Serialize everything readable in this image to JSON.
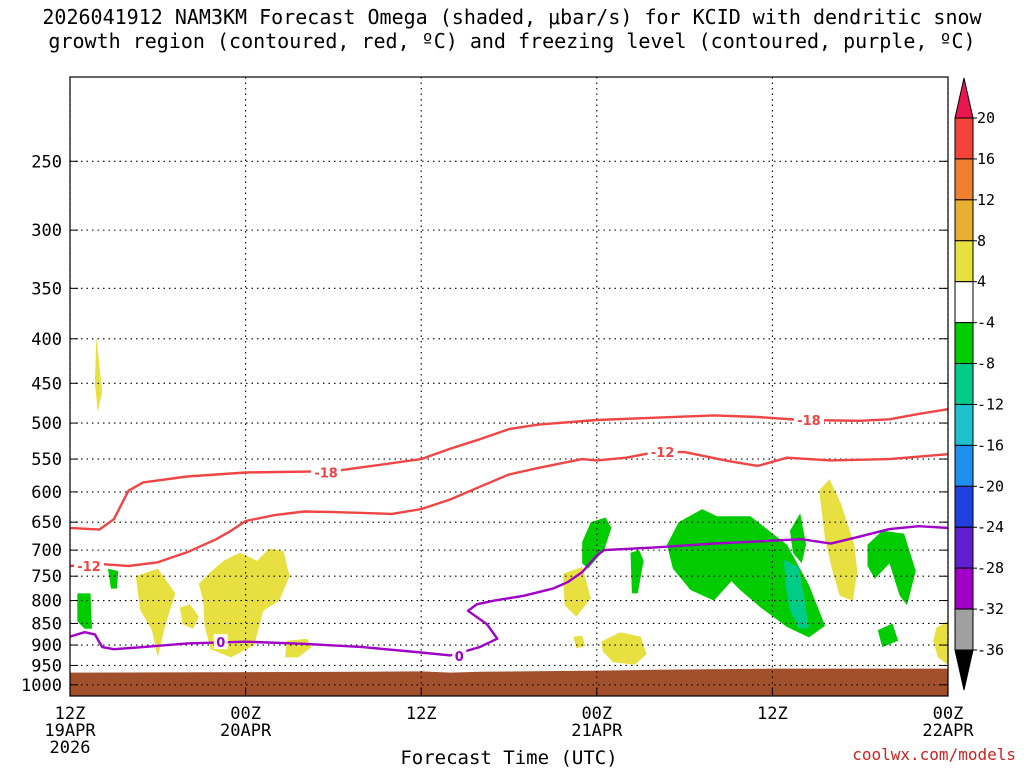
{
  "title_line1": "2026041912 NAM3KM Forecast Omega (shaded, μbar/s) for KCID with dendritic snow",
  "title_line2": "growth region (contoured, red, ºC) and freezing level (contoured, purple, ºC)",
  "credit": "coolwx.com/models",
  "chart_data": {
    "type": "time-height",
    "xlabel": "Forecast Time (UTC)",
    "x_ticks": [
      {
        "hours": 0,
        "line1": "12Z",
        "line2": "19APR",
        "line3": "2026"
      },
      {
        "hours": 12,
        "line1": "00Z",
        "line2": "20APR",
        "line3": ""
      },
      {
        "hours": 24,
        "line1": "12Z",
        "line2": "",
        "line3": ""
      },
      {
        "hours": 36,
        "line1": "00Z",
        "line2": "21APR",
        "line3": ""
      },
      {
        "hours": 48,
        "line1": "12Z",
        "line2": "",
        "line3": ""
      },
      {
        "hours": 60,
        "line1": "00Z",
        "line2": "22APR",
        "line3": ""
      }
    ],
    "y_scale": "log",
    "ylim": [
      200,
      1030
    ],
    "y_ticks": [
      250,
      300,
      350,
      400,
      450,
      500,
      550,
      600,
      650,
      700,
      750,
      800,
      850,
      900,
      950,
      1000
    ],
    "colorbar": {
      "labels": [
        "20",
        "16",
        "12",
        "8",
        "4",
        "-4",
        "-8",
        "-12",
        "-16",
        "-20",
        "-24",
        "-28",
        "-32",
        "-36"
      ],
      "colors": [
        "#e8174f",
        "#f4443a",
        "#f08030",
        "#e8b030",
        "#e8e040",
        "#ffffff",
        "#00cc00",
        "#00cc88",
        "#20c0d0",
        "#2090f0",
        "#2040e0",
        "#6020d0",
        "#a000c8",
        "#a0a0a0",
        "#000000"
      ]
    },
    "contours": [
      {
        "label": "-18",
        "color": "#f04545",
        "label_at": [
          [
            17.5,
            570
          ],
          [
            50.5,
            496
          ]
        ],
        "points": [
          [
            0,
            660
          ],
          [
            2,
            663
          ],
          [
            3,
            645
          ],
          [
            4,
            598
          ],
          [
            5,
            585
          ],
          [
            8,
            576
          ],
          [
            12,
            570
          ],
          [
            18,
            568
          ],
          [
            20,
            562
          ],
          [
            24,
            550
          ],
          [
            26,
            535
          ],
          [
            28,
            522
          ],
          [
            30,
            508
          ],
          [
            32,
            502
          ],
          [
            36,
            496
          ],
          [
            40,
            493
          ],
          [
            44,
            490
          ],
          [
            47,
            492
          ],
          [
            50,
            496
          ],
          [
            54,
            497
          ],
          [
            56,
            495
          ],
          [
            58,
            488
          ],
          [
            60,
            482
          ]
        ]
      },
      {
        "label": "-12",
        "color": "#f04545",
        "label_at": [
          [
            1.3,
            730
          ],
          [
            40.5,
            540
          ]
        ],
        "points": [
          [
            0,
            730
          ],
          [
            2,
            726
          ],
          [
            4,
            730
          ],
          [
            6,
            723
          ],
          [
            8,
            704
          ],
          [
            10,
            680
          ],
          [
            11,
            665
          ],
          [
            12,
            648
          ],
          [
            14,
            638
          ],
          [
            16,
            632
          ],
          [
            18,
            633
          ],
          [
            22,
            636
          ],
          [
            24,
            628
          ],
          [
            26,
            612
          ],
          [
            28,
            592
          ],
          [
            30,
            573
          ],
          [
            32,
            563
          ],
          [
            35,
            550
          ],
          [
            36,
            552
          ],
          [
            38,
            548
          ],
          [
            40,
            540
          ],
          [
            42,
            540
          ],
          [
            45,
            553
          ],
          [
            47,
            560
          ],
          [
            49,
            548
          ],
          [
            52,
            552
          ],
          [
            56,
            550
          ],
          [
            60,
            543
          ]
        ]
      },
      {
        "label": "0",
        "color": "#a000c8",
        "label_at": [
          [
            10.3,
            893
          ],
          [
            26.6,
            927
          ]
        ],
        "points": [
          [
            0,
            880
          ],
          [
            1,
            870
          ],
          [
            1.7,
            875
          ],
          [
            2.2,
            905
          ],
          [
            3,
            910
          ],
          [
            5,
            905
          ],
          [
            8,
            896
          ],
          [
            12,
            892
          ],
          [
            16,
            897
          ],
          [
            20,
            905
          ],
          [
            24,
            918
          ],
          [
            26,
            925
          ],
          [
            28,
            905
          ],
          [
            29.2,
            885
          ],
          [
            28.5,
            852
          ],
          [
            27.2,
            822
          ],
          [
            27.8,
            808
          ],
          [
            29,
            800
          ],
          [
            31,
            790
          ],
          [
            33,
            775
          ],
          [
            34,
            762
          ],
          [
            35,
            742
          ],
          [
            36,
            710
          ],
          [
            36.5,
            700
          ],
          [
            40,
            695
          ],
          [
            44,
            688
          ],
          [
            47,
            684
          ],
          [
            50,
            680
          ],
          [
            52,
            688
          ],
          [
            54,
            675
          ],
          [
            56,
            662
          ],
          [
            58,
            657
          ],
          [
            60,
            660
          ]
        ]
      }
    ],
    "shaded_regions": [
      {
        "color": "#00cc00",
        "points": [
          [
            0.5,
            785
          ],
          [
            1.4,
            785
          ],
          [
            1.5,
            862
          ],
          [
            1.0,
            862
          ],
          [
            0.5,
            845
          ]
        ]
      },
      {
        "color": "#00cc00",
        "points": [
          [
            2.6,
            735
          ],
          [
            3.3,
            740
          ],
          [
            3.2,
            775
          ],
          [
            2.8,
            775
          ]
        ]
      },
      {
        "color": "#00cc00",
        "points": [
          [
            35.0,
            685
          ],
          [
            35.6,
            650
          ],
          [
            36.6,
            642
          ],
          [
            37.0,
            660
          ],
          [
            36.5,
            700
          ],
          [
            35.4,
            735
          ],
          [
            35.0,
            725
          ]
        ]
      },
      {
        "color": "#00cc00",
        "points": [
          [
            40.8,
            690
          ],
          [
            41.6,
            650
          ],
          [
            43.2,
            628
          ],
          [
            44.2,
            640
          ],
          [
            46.5,
            640
          ],
          [
            49.0,
            690
          ],
          [
            50.5,
            768
          ],
          [
            51.6,
            855
          ],
          [
            50.5,
            882
          ],
          [
            49.0,
            858
          ],
          [
            47.2,
            815
          ],
          [
            45.8,
            778
          ],
          [
            45.2,
            760
          ],
          [
            44.0,
            800
          ],
          [
            42.4,
            778
          ],
          [
            41.2,
            735
          ]
        ]
      },
      {
        "color": "#00cc00",
        "points": [
          [
            38.3,
            705
          ],
          [
            38.9,
            700
          ],
          [
            39.2,
            720
          ],
          [
            38.8,
            785
          ],
          [
            38.4,
            785
          ]
        ]
      },
      {
        "color": "#00cc00",
        "points": [
          [
            49.2,
            665
          ],
          [
            49.9,
            635
          ],
          [
            50.3,
            690
          ],
          [
            50.0,
            725
          ],
          [
            49.4,
            705
          ]
        ]
      },
      {
        "color": "#00cc00",
        "points": [
          [
            54.5,
            690
          ],
          [
            55.5,
            665
          ],
          [
            57.0,
            670
          ],
          [
            57.8,
            740
          ],
          [
            57.2,
            810
          ],
          [
            56.7,
            790
          ],
          [
            56.0,
            725
          ],
          [
            55.0,
            755
          ],
          [
            54.5,
            730
          ]
        ]
      },
      {
        "color": "#00cc00",
        "points": [
          [
            55.2,
            865
          ],
          [
            56.2,
            850
          ],
          [
            56.6,
            890
          ],
          [
            55.5,
            905
          ]
        ]
      },
      {
        "color": "#00cc88",
        "points": [
          [
            48.8,
            718
          ],
          [
            49.8,
            732
          ],
          [
            50.2,
            800
          ],
          [
            50.5,
            860
          ],
          [
            49.8,
            862
          ],
          [
            49.2,
            820
          ],
          [
            48.9,
            770
          ]
        ]
      },
      {
        "color": "#e8e040",
        "points": [
          [
            1.8,
            398
          ],
          [
            2.2,
            460
          ],
          [
            1.9,
            485
          ],
          [
            1.7,
            450
          ]
        ]
      },
      {
        "color": "#e8e040",
        "points": [
          [
            4.5,
            750
          ],
          [
            6.0,
            735
          ],
          [
            7.2,
            785
          ],
          [
            6.5,
            855
          ],
          [
            6.0,
            930
          ],
          [
            5.6,
            865
          ],
          [
            4.8,
            820
          ]
        ]
      },
      {
        "color": "#e8e040",
        "points": [
          [
            7.5,
            815
          ],
          [
            8.2,
            808
          ],
          [
            8.8,
            835
          ],
          [
            8.4,
            862
          ],
          [
            7.7,
            852
          ]
        ]
      },
      {
        "color": "#e8e040",
        "points": [
          [
            8.8,
            765
          ],
          [
            9.6,
            742
          ],
          [
            10.5,
            720
          ],
          [
            11.6,
            705
          ],
          [
            12.8,
            720
          ],
          [
            13.6,
            697
          ],
          [
            14.6,
            702
          ],
          [
            15.0,
            750
          ],
          [
            14.3,
            800
          ],
          [
            13.2,
            822
          ],
          [
            12.6,
            900
          ],
          [
            11.0,
            930
          ],
          [
            9.6,
            910
          ],
          [
            9.2,
            855
          ],
          [
            9.1,
            800
          ]
        ]
      },
      {
        "color": "#e8e040",
        "points": [
          [
            14.8,
            890
          ],
          [
            16.2,
            885
          ],
          [
            16.5,
            905
          ],
          [
            15.6,
            930
          ],
          [
            14.7,
            930
          ]
        ]
      },
      {
        "color": "#e8e040",
        "points": [
          [
            33.7,
            745
          ],
          [
            35.0,
            732
          ],
          [
            35.6,
            795
          ],
          [
            34.6,
            835
          ],
          [
            33.8,
            810
          ]
        ]
      },
      {
        "color": "#e8e040",
        "points": [
          [
            34.4,
            880
          ],
          [
            35.0,
            878
          ],
          [
            35.2,
            902
          ],
          [
            34.6,
            908
          ]
        ]
      },
      {
        "color": "#e8e040",
        "points": [
          [
            36.3,
            892
          ],
          [
            37.6,
            870
          ],
          [
            39.0,
            880
          ],
          [
            39.4,
            922
          ],
          [
            38.6,
            948
          ],
          [
            37.1,
            942
          ],
          [
            36.4,
            915
          ]
        ]
      },
      {
        "color": "#e8e040",
        "points": [
          [
            51.2,
            598
          ],
          [
            51.9,
            580
          ],
          [
            52.7,
            620
          ],
          [
            53.6,
            690
          ],
          [
            53.8,
            740
          ],
          [
            53.5,
            800
          ],
          [
            52.6,
            790
          ],
          [
            52.1,
            740
          ],
          [
            51.6,
            680
          ]
        ]
      },
      {
        "color": "#e8e040",
        "points": [
          [
            59.2,
            860
          ],
          [
            60.0,
            845
          ],
          [
            60.0,
            948
          ],
          [
            59.3,
            930
          ],
          [
            59.0,
            890
          ]
        ]
      }
    ],
    "ground": {
      "color": "#a24f2c",
      "top_hpa": [
        [
          0,
          968
        ],
        [
          20,
          966
        ],
        [
          24,
          965
        ],
        [
          26,
          968
        ],
        [
          28,
          966
        ],
        [
          36,
          963
        ],
        [
          40,
          961
        ],
        [
          48,
          958
        ],
        [
          60,
          958
        ]
      ]
    }
  }
}
